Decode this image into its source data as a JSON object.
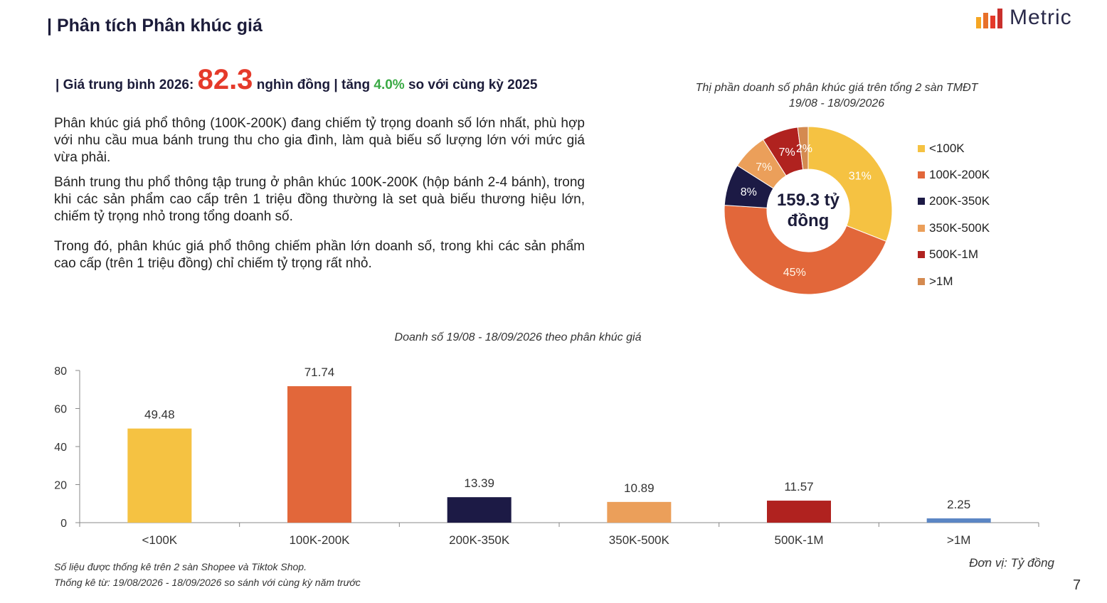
{
  "page": {
    "title": "| Phân tích Phân khúc giá",
    "logo_text": "Metric",
    "page_number": "7"
  },
  "headline": {
    "prefix": "| Giá trung bình 2026:",
    "avg_price": "82.3",
    "unit": "nghìn đồng | tăng",
    "growth": "4.0%",
    "suffix": "so với cùng kỳ 2025"
  },
  "paragraphs": [
    "Phân khúc giá phổ thông (100K-200K) đang chiếm tỷ trọng doanh số lớn nhất, phù hợp với nhu cầu mua bánh trung thu cho gia đình, làm quà biếu số lượng lớn với mức giá vừa phải.",
    "Bánh trung thu phổ thông tập trung ở phân khúc 100K-200K (hộp bánh 2-4 bánh), trong khi các sản phẩm cao cấp trên 1 triệu đồng thường là set quà biếu thương hiệu lớn, chiếm tỷ trọng nhỏ trong tổng doanh số.",
    "Trong đó, phân khúc giá phổ thông chiếm phần lớn doanh số, trong khi các sản phẩm cao cấp (trên 1 triệu đồng) chỉ chiếm tỷ trọng rất nhỏ."
  ],
  "footer": {
    "unit_note": "Đơn vị: Tỷ đồng",
    "source_line1": "Số liệu được thống kê trên 2 sàn Shopee và Tiktok Shop.",
    "source_line2": "Thống kê từ: 19/08/2026 - 18/09/2026 so sánh với cùng kỳ năm trước"
  },
  "colors": {
    "brand": "#1c1c3a",
    "highlight_red": "#e53a2a",
    "growth_green": "#3aaa45",
    "logo_bars": [
      "#f5a623",
      "#e8702a",
      "#e53a2a",
      "#c9302c"
    ]
  },
  "chart_data": [
    {
      "type": "pie",
      "style": "donut",
      "title": "Thị phần doanh số phân khúc giá trên tổng 2 sàn TMĐT",
      "subtitle": "19/08 - 18/09/2026",
      "center_label_line1": "159.3 tỷ",
      "center_label_line2": "đồng",
      "legend_position": "right",
      "labels": [
        "<100K",
        "100K-200K",
        "200K-350K",
        "350K-500K",
        "500K-1M",
        ">1M"
      ],
      "values": [
        31,
        45,
        8,
        7,
        7,
        2
      ],
      "value_labels": [
        "31%",
        "45%",
        "8%",
        "7%",
        "7%",
        "2%"
      ],
      "colors": [
        "#f5c242",
        "#e2673a",
        "#1c1a45",
        "#eb9f5a",
        "#b0221f",
        "#d48a50"
      ]
    },
    {
      "type": "bar",
      "title": "Doanh số 19/08 - 18/09/2026 theo phân khúc giá",
      "categories": [
        "<100K",
        "100K-200K",
        "200K-350K",
        "350K-500K",
        "500K-1M",
        ">1M"
      ],
      "values": [
        49.48,
        71.74,
        13.39,
        10.89,
        11.57,
        2.25
      ],
      "value_labels": [
        "49.48",
        "71.74",
        "13.39",
        "10.89",
        "11.57",
        "2.25"
      ],
      "colors": [
        "#f5c242",
        "#e2673a",
        "#1c1a45",
        "#eb9f5a",
        "#b0221f",
        "#5b86c4"
      ],
      "ylim": [
        0,
        80
      ],
      "yticks": [
        "0",
        "20",
        "40",
        "60",
        "80"
      ],
      "grid": false
    }
  ]
}
